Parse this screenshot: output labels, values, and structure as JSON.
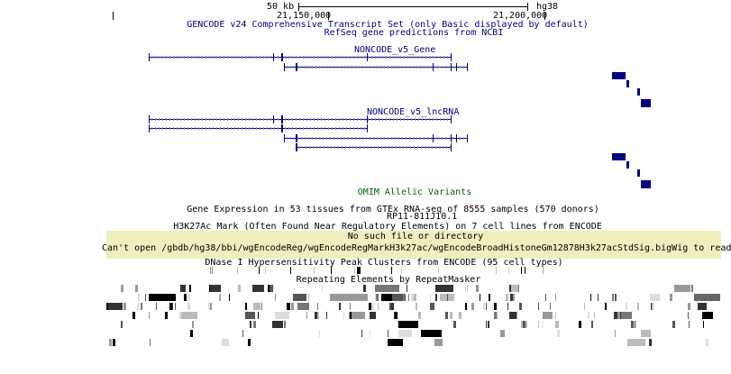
{
  "ruler": {
    "scale_label": "50 kb",
    "assembly": "hg38",
    "pos1": "21,150,000",
    "pos2": "21,200,000"
  },
  "tracks": {
    "gencode": "GENCODE v24 Comprehensive Transcript Set (only Basic displayed by default)",
    "refseq": "RefSeq gene predictions from NCBI",
    "noncode_gene": "NONCODE_v5_Gene",
    "noncode_lnc": "NONCODE_v5_lncRNA",
    "omim": "OMIM Allelic Variants",
    "gtex": "Gene Expression in 53 tissues from GTEx RNA-seq of 8555 samples (570 donors)",
    "gtex_gene": "RP11-811J10.1",
    "h3k27ac": "H3K27Ac Mark (Often Found Near Regulatory Elements) on 7 cell lines from ENCODE",
    "error_title": "No such file or directory",
    "error_msg": "Can't open /gbdb/hg38/bbi/wgEncodeReg/wgEncodeRegMarkH3k27ac/wgEncodeBroadHistoneGm12878H3k27acStdSig.bigWig to read",
    "dnase": "DNase I Hypersensitivity Peak Clusters from ENCODE (95 cell types)",
    "rmsk": "Repeating Elements by RepeatMasker"
  },
  "colors": {
    "gene": "#000080",
    "omim": "#006400",
    "warning_bg": "#efefbd"
  }
}
